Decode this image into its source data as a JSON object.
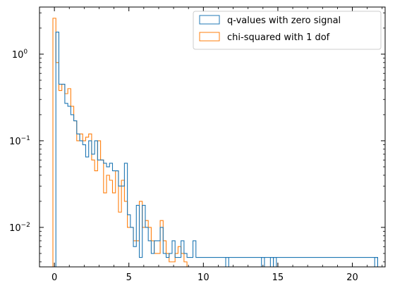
{
  "chart_data": {
    "type": "histogram",
    "x_range": [
      -1.0,
      22.2
    ],
    "y_scale": "log",
    "y_range": [
      0.0035,
      3.5
    ],
    "bin_width": 0.2,
    "bin_start": -0.1,
    "x_ticks": [
      0,
      5,
      10,
      15,
      20
    ],
    "x_tick_labels": [
      "0",
      "5",
      "10",
      "15",
      "20"
    ],
    "y_major_ticks": [
      0.01,
      0.1,
      1
    ],
    "y_tick_labels": [
      {
        "base": "10",
        "exp": "−2"
      },
      {
        "base": "10",
        "exp": "−1"
      },
      {
        "base": "10",
        "exp": "0"
      }
    ],
    "grid": false,
    "legend_position": "top-right",
    "series": [
      {
        "name": "q-values with zero signal",
        "color": "#1f77b4",
        "values": [
          0,
          1.8,
          0.45,
          0.45,
          0.27,
          0.25,
          0.2,
          0.17,
          0.12,
          0.1,
          0.09,
          0.065,
          0.1,
          0.07,
          0.1,
          0.06,
          0.06,
          0.055,
          0.05,
          0.055,
          0.045,
          0.045,
          0.03,
          0.03,
          0.055,
          0.014,
          0.01,
          0.006,
          0.018,
          0.0045,
          0.018,
          0.01,
          0.007,
          0.005,
          0.007,
          0.007,
          0.01,
          0.005,
          0.0045,
          0.005,
          0.007,
          0.0045,
          0.0045,
          0.007,
          0.005,
          0.0045,
          0.0045,
          0.007,
          0.0045,
          0.0045,
          0.0045,
          0.0045,
          0.0045,
          0.0045,
          0.0045,
          0.0045,
          0.0045,
          0.0045,
          0.0045,
          0.0045,
          0.0045,
          0.0045,
          0.0045,
          0.0045,
          0.0045,
          0.0045,
          0.0045,
          0.0045,
          0.0045,
          0.0045,
          0.0045,
          0.0045,
          0.0045,
          0.0045,
          0.0045,
          0.0045,
          0.0045,
          0.0045,
          0.0045,
          0.0045,
          0.0045,
          0.0045,
          0.0045,
          0.0045,
          0.0045,
          0.0045,
          0.0045,
          0.0045,
          0.0045,
          0.0045,
          0.0045,
          0.0045,
          0.0045,
          0.0045,
          0.0045,
          0.0045,
          0.0045,
          0.0045,
          0.0045,
          0.0045,
          0.0045,
          0.0045,
          0.0045,
          0.0045,
          0.0045,
          0.0045,
          0.0045,
          0.0045,
          0.0045
        ],
        "extra_bins": [
          [
            11.5,
            0.0045
          ],
          [
            13.9,
            0.0045
          ],
          [
            14.5,
            0.0045
          ],
          [
            14.7,
            0.0045
          ],
          [
            21.5,
            0.0045
          ]
        ]
      },
      {
        "name": "chi-squared with 1 dof",
        "color": "#ff7f0e",
        "values": [
          2.6,
          0.8,
          0.38,
          0.45,
          0.35,
          0.4,
          0.25,
          0.17,
          0.1,
          0.12,
          0.1,
          0.11,
          0.12,
          0.06,
          0.045,
          0.1,
          0.06,
          0.025,
          0.04,
          0.035,
          0.025,
          0.045,
          0.015,
          0.035,
          0.02,
          0.01,
          0.01,
          0.007,
          0.007,
          0.02,
          0.01,
          0.012,
          0.01,
          0.007,
          0.005,
          0.005,
          0.012,
          0.007,
          0.005,
          0.004,
          0.004,
          0.005,
          0.006,
          0.005,
          0.004
        ]
      }
    ]
  }
}
